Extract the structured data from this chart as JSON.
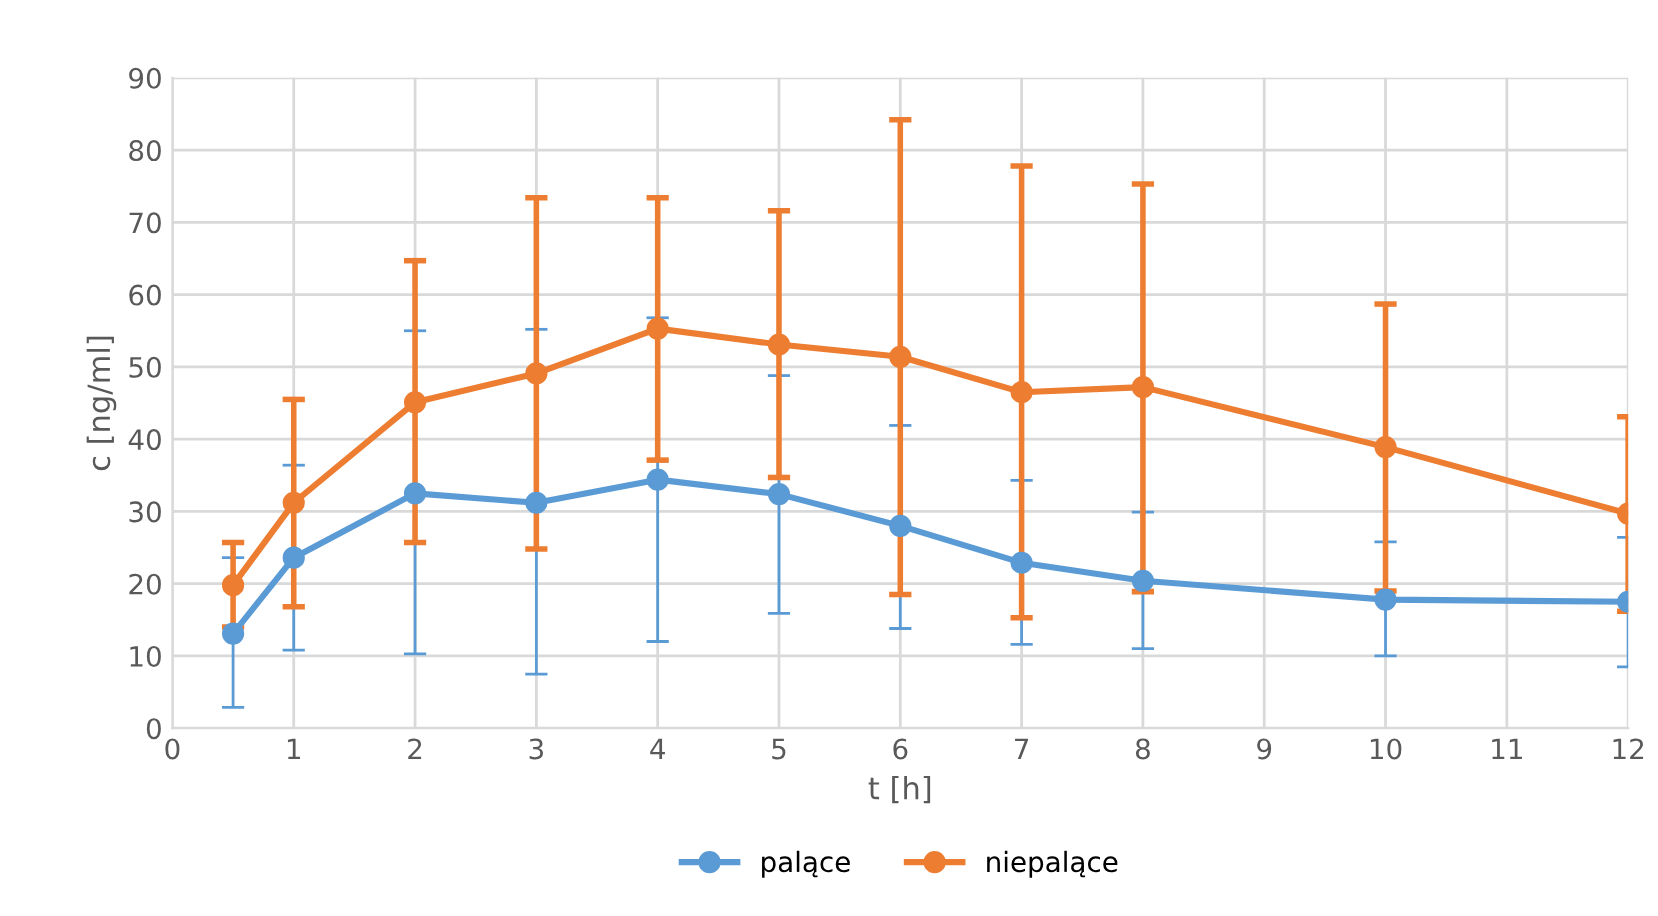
{
  "chart_data": {
    "type": "line",
    "xlabel": "t [h]",
    "ylabel": "c [ng/ml]",
    "x": [
      0.5,
      1,
      2,
      3,
      4,
      5,
      6,
      7,
      8,
      10,
      12
    ],
    "xlim": [
      0,
      12
    ],
    "xticks": [
      0,
      1,
      2,
      3,
      4,
      5,
      6,
      7,
      8,
      9,
      10,
      11,
      12
    ],
    "ylim": [
      0,
      90
    ],
    "yticks": [
      0,
      10,
      20,
      30,
      40,
      50,
      60,
      70,
      80,
      90
    ],
    "grid": true,
    "legend": "bottom",
    "marker": "circle",
    "line_style": "solid",
    "series": [
      {
        "name": "palące",
        "color": "#5b9bd5",
        "values": [
          13.1,
          23.6,
          32.5,
          31.2,
          34.4,
          32.4,
          28,
          22.9,
          20.4,
          17.8,
          17.5
        ],
        "errors": [
          [
            2.9,
            23.6
          ],
          [
            10.8,
            36.4
          ],
          [
            10.3,
            55
          ],
          [
            7.5,
            55.2
          ],
          [
            12,
            56.8
          ],
          [
            15.9,
            48.8
          ],
          [
            13.8,
            41.9
          ],
          [
            11.6,
            34.3
          ],
          [
            11,
            29.9
          ],
          [
            10,
            25.8
          ],
          [
            8.5,
            26.4
          ]
        ]
      },
      {
        "name": "niepalące",
        "color": "#ed7d31",
        "values": [
          19.8,
          31.2,
          45.1,
          49.1,
          55.3,
          53.1,
          51.4,
          46.5,
          47.2,
          38.9,
          29.7
        ],
        "errors": [
          [
            14,
            25.7
          ],
          [
            16.8,
            45.5
          ],
          [
            25.7,
            64.7
          ],
          [
            24.8,
            73.4
          ],
          [
            37.1,
            73.4
          ],
          [
            34.7,
            71.6
          ],
          [
            18.5,
            84.2
          ],
          [
            15.3,
            77.8
          ],
          [
            18.9,
            75.3
          ],
          [
            19,
            58.7
          ],
          [
            16.2,
            43.1
          ]
        ]
      }
    ]
  }
}
